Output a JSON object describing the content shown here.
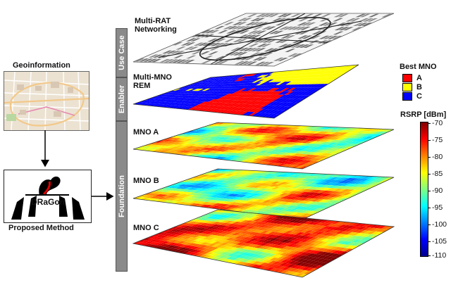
{
  "left": {
    "geo_title": "Geoinformation",
    "logo_text": "DRaGon",
    "method_label": "Proposed Method"
  },
  "brackets": [
    {
      "label": "Use Case"
    },
    {
      "label": "Enabler"
    },
    {
      "label": "Foundation"
    }
  ],
  "layers": [
    {
      "label": "Multi-RAT\nNetworking",
      "kind": "city"
    },
    {
      "label": "Multi-MNO\nREM",
      "kind": "best"
    },
    {
      "label": "MNO A",
      "kind": "rsrp"
    },
    {
      "label": "MNO B",
      "kind": "rsrp"
    },
    {
      "label": "MNO C",
      "kind": "rsrp"
    }
  ],
  "legend_best": {
    "title": "Best MNO",
    "items": [
      {
        "label": "A",
        "color": "#ff0000"
      },
      {
        "label": "B",
        "color": "#ffff00"
      },
      {
        "label": "C",
        "color": "#0000ff"
      }
    ]
  },
  "colorbar": {
    "title": "RSRP [dBm]",
    "ticks": [
      "-70",
      "-75",
      "-80",
      "-85",
      "-90",
      "-95",
      "-100",
      "-105",
      "-110"
    ],
    "min": -110,
    "max": -70
  },
  "colors": {
    "bracket": "#8a8a8a",
    "city_bg": "#f4f4f4",
    "buildings": "#6f6f6f",
    "roads": "#222222"
  }
}
